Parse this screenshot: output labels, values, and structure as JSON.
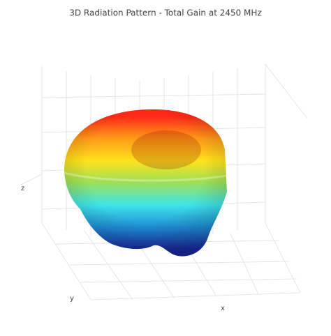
{
  "chart_data": {
    "type": "surface3d",
    "title": "3D Radiation Pattern - Total Gain at 2450 MHz",
    "xlabel": "x",
    "ylabel": "y",
    "zlabel": "z",
    "colorscale": [
      "#1a2a9e",
      "#1f8fd6",
      "#3de6ea",
      "#9be05a",
      "#ffe21a",
      "#ff9c18",
      "#ff2a18"
    ],
    "grid": true
  }
}
